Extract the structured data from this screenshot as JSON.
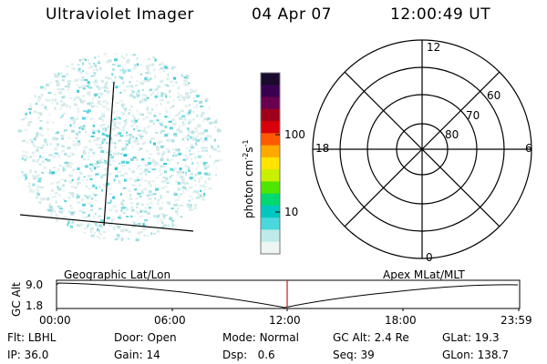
{
  "header": {
    "title": "Ultraviolet Imager",
    "date": "04 Apr 07",
    "time": "12:00:49 UT"
  },
  "colorbar": {
    "label_main": "photon cm",
    "label_exp1": "-2",
    "label_mid": "s",
    "label_exp2": "-1",
    "ticks": [
      {
        "label": "100",
        "value": 100
      },
      {
        "label": "10",
        "value": 10
      }
    ],
    "colors": [
      "#1a0a2e",
      "#3a0050",
      "#6a0050",
      "#a0001c",
      "#d8000a",
      "#ff5a00",
      "#ffa800",
      "#ffe400",
      "#c8f000",
      "#4ee600",
      "#00d870",
      "#00c8c0",
      "#4ad8dc",
      "#bfeaea",
      "#eef5f5"
    ]
  },
  "polar": {
    "mlt_labels": [
      {
        "label": "12",
        "pos": "top"
      },
      {
        "label": "18",
        "pos": "left"
      },
      {
        "label": "6",
        "pos": "right"
      },
      {
        "label": "0",
        "pos": "bottom"
      }
    ],
    "lat_labels": [
      "60",
      "70",
      "80"
    ]
  },
  "orbit": {
    "y_axis_label": "GC Alt",
    "y_ticks": [
      "9.0",
      "1.8"
    ],
    "left_label": "Geographic Lat/Lon",
    "right_label": "Apex MLat/MLT",
    "x_ticks": [
      "00:00",
      "06:00",
      "12:00",
      "18:00",
      "23:59"
    ],
    "current_marker_time": "12:00",
    "marker_color": "#c03030"
  },
  "info": {
    "row1": [
      {
        "key": "Flt:",
        "value": "LBHL"
      },
      {
        "key": "Door:",
        "value": "Open"
      },
      {
        "key": "Mode:",
        "value": "Normal"
      },
      {
        "key": "GC Alt:",
        "value": "2.4 Re"
      },
      {
        "key": "GLat:",
        "value": "19.3"
      }
    ],
    "row2": [
      {
        "key": "IP:",
        "value": "36.0"
      },
      {
        "key": "Gain:",
        "value": "14"
      },
      {
        "key": "Dsp:",
        "value": "0.6"
      },
      {
        "key": "Seq:",
        "value": "39"
      },
      {
        "key": "GLon:",
        "value": "138.7"
      }
    ]
  }
}
